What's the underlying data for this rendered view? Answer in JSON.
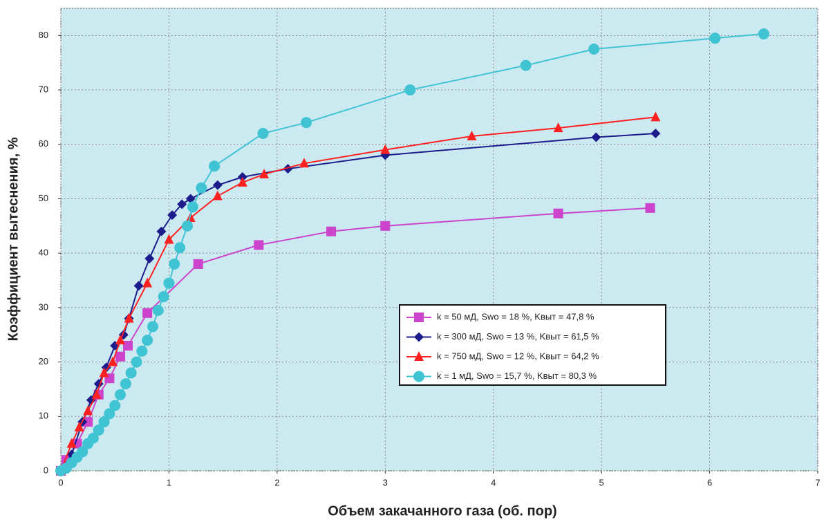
{
  "chart_data": {
    "type": "line",
    "xlabel": "Объем закачанного газа (об. пор)",
    "ylabel": "Коэффициент вытеснения, %",
    "xlim": [
      0,
      7
    ],
    "xticks": [
      0,
      1,
      2,
      3,
      4,
      5,
      6,
      7
    ],
    "ylim": [
      0,
      85
    ],
    "yticks": [
      0,
      10,
      20,
      30,
      40,
      50,
      60,
      70,
      80
    ],
    "grid": true,
    "legend": "lower right",
    "series": [
      {
        "name": "k = 50 мД, Swo = 18 %, Kвыт = 47,8 %",
        "color": "#cc44cc",
        "marker": "square",
        "x": [
          0,
          0.05,
          0.15,
          0.25,
          0.35,
          0.45,
          0.55,
          0.62,
          0.8,
          1.27,
          1.83,
          2.5,
          3.0,
          4.6,
          5.45
        ],
        "values": [
          0,
          2,
          5,
          9,
          14,
          17,
          21,
          23,
          29,
          38,
          41.5,
          44,
          45,
          47.3,
          48.3
        ]
      },
      {
        "name": "k = 300 мД, Swo = 13 %, Kвыт = 61,5 %",
        "color": "#1c1c8c",
        "marker": "diamond",
        "x": [
          0,
          0.1,
          0.2,
          0.28,
          0.35,
          0.42,
          0.5,
          0.58,
          0.63,
          0.72,
          0.82,
          0.93,
          1.03,
          1.12,
          1.2,
          1.45,
          1.68,
          2.1,
          3.0,
          4.95,
          5.5
        ],
        "values": [
          0,
          3,
          9,
          13,
          16,
          19,
          23,
          25,
          28,
          34,
          39,
          44,
          47,
          49,
          50,
          52.5,
          54,
          55.5,
          58,
          61.3,
          62
        ]
      },
      {
        "name": "k = 750 мД, Swo = 12 %, Kвыт = 64,2 %",
        "color": "#ff2020",
        "marker": "triangle",
        "x": [
          0,
          0.1,
          0.17,
          0.25,
          0.33,
          0.4,
          0.48,
          0.55,
          0.63,
          0.8,
          1.0,
          1.2,
          1.45,
          1.68,
          1.88,
          2.25,
          3.0,
          3.8,
          4.6,
          5.5
        ],
        "values": [
          0,
          5,
          8,
          11,
          14,
          18,
          20,
          24,
          28,
          34.5,
          42.5,
          46.5,
          50.5,
          53,
          54.5,
          56.5,
          59,
          61.5,
          63,
          65
        ]
      },
      {
        "name": "k = 1 мД, Swo = 15,7 %, Kвыт = 80,3 %",
        "color": "#40c4d4",
        "marker": "circle",
        "x": [
          0,
          0.05,
          0.1,
          0.15,
          0.2,
          0.25,
          0.3,
          0.35,
          0.4,
          0.45,
          0.5,
          0.55,
          0.6,
          0.65,
          0.7,
          0.75,
          0.8,
          0.85,
          0.9,
          0.95,
          1.0,
          1.05,
          1.1,
          1.17,
          1.22,
          1.3,
          1.42,
          1.87,
          2.27,
          3.23,
          4.3,
          4.93,
          6.05,
          6.5
        ],
        "values": [
          0,
          0.5,
          1.5,
          2.5,
          3.5,
          5,
          6,
          7.5,
          9,
          10.5,
          12,
          14,
          16,
          18,
          20,
          22,
          24,
          26.5,
          29.5,
          32,
          34.5,
          38,
          41,
          45,
          48.5,
          52,
          56,
          62,
          64,
          70,
          74.5,
          77.5,
          79.5,
          80.3
        ]
      }
    ]
  }
}
